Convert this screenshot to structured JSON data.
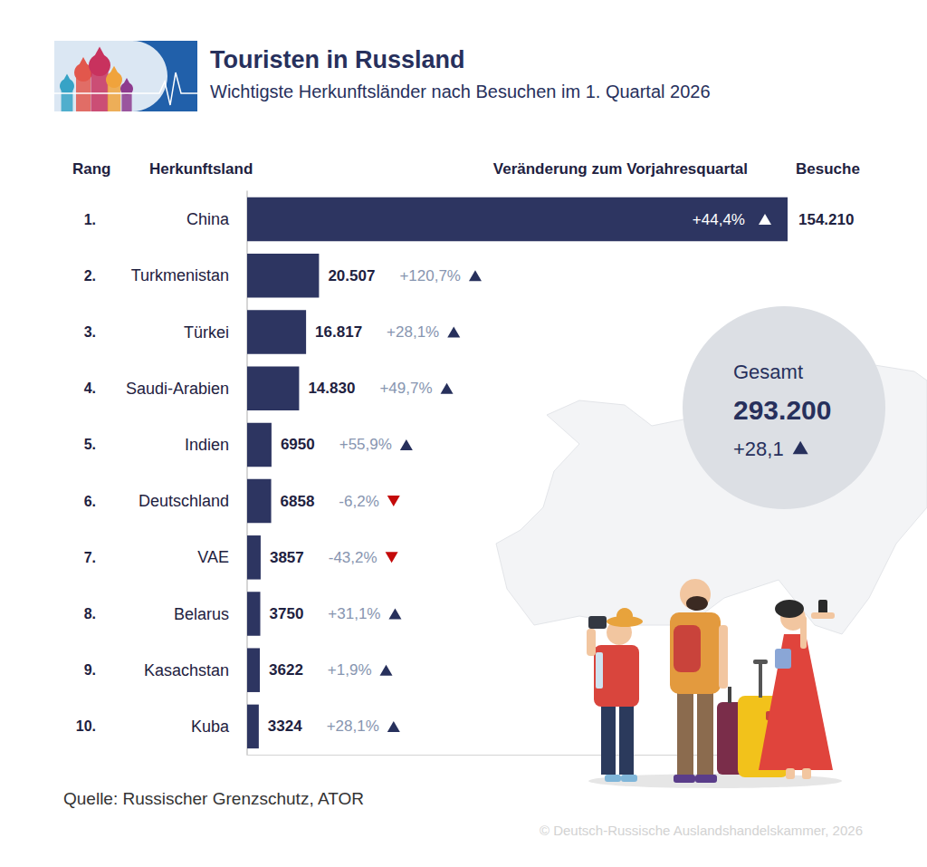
{
  "chart_data": {
    "type": "bar",
    "orientation": "horizontal",
    "title": "Touristen in Russland",
    "subtitle": "Wichtigste Herkunftsländer nach Besuchen im 1. Quartal 2026",
    "column_headers": {
      "rank": "Rang",
      "category": "Herkunftsland",
      "change": "Veränderung zum Vorjahresquartal",
      "value": "Besuche"
    },
    "ranks": [
      "1.",
      "2.",
      "3.",
      "4.",
      "5.",
      "6.",
      "7.",
      "8.",
      "9.",
      "10."
    ],
    "categories": [
      "China",
      "Turkmenistan",
      "Türkei",
      "Saudi-Arabien",
      "Indien",
      "Deutschland",
      "VAE",
      "Belarus",
      "Kasachstan",
      "Kuba"
    ],
    "values": [
      154210,
      20507,
      16817,
      14830,
      6950,
      6858,
      3857,
      3750,
      3622,
      3324
    ],
    "value_labels": [
      "154.210",
      "20.507",
      "16.817",
      "14.830",
      "6950",
      "6858",
      "3857",
      "3750",
      "3622",
      "3324"
    ],
    "changes": [
      44.4,
      120.7,
      28.1,
      49.7,
      55.9,
      -6.2,
      -43.2,
      31.1,
      1.9,
      28.1
    ],
    "change_labels": [
      "+44,4%",
      "+120,7%",
      "+28,1%",
      "+49,7%",
      "+55,9%",
      "-6,2%",
      "-43,2%",
      "+31,1%",
      "+1,9%",
      "+28,1%"
    ],
    "color": "#2d3561",
    "data_labels": true,
    "tick_labels": "y",
    "xlim": [
      0,
      154210
    ],
    "xticks": [],
    "total": {
      "label": "Gesamt",
      "value_label": "293.200",
      "change_label": "+28,1",
      "change": 28.1
    },
    "source": "Quelle: Russischer Grenzschutz, ATOR",
    "copyright": "© Deutsch-Russische Auslandshandelskammer, 2026"
  }
}
